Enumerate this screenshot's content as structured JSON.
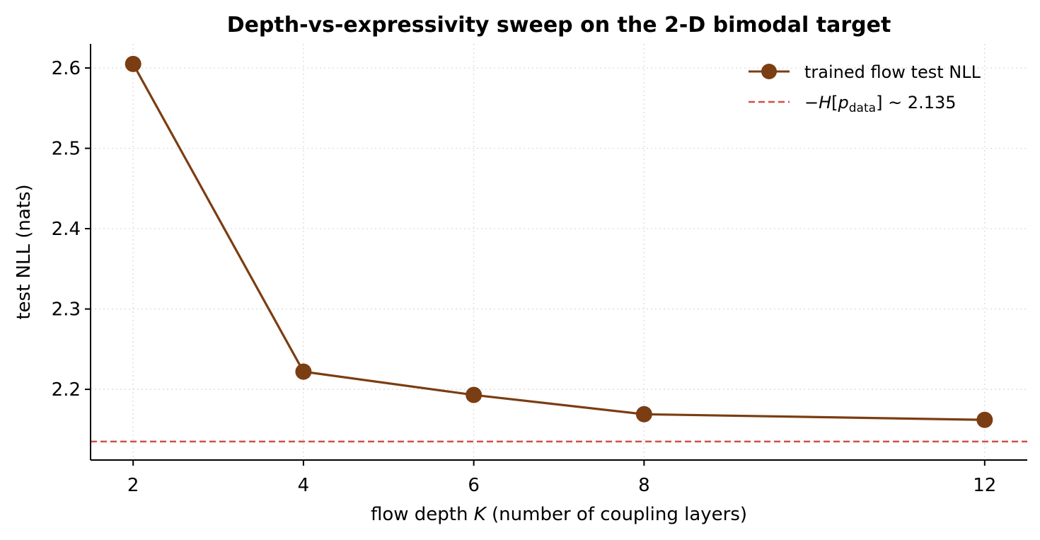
{
  "chart_data": {
    "type": "line",
    "title": "Depth-vs-expressivity sweep on the 2-D bimodal target",
    "xlabel": "flow depth K (number of coupling layers)",
    "xlabel_parts": {
      "pre": "flow depth ",
      "italic": "K",
      "post": " (number of coupling layers)"
    },
    "ylabel": "test NLL (nats)",
    "x": [
      2,
      4,
      6,
      8,
      12
    ],
    "xticks": [
      "2",
      "4",
      "6",
      "8",
      "12"
    ],
    "yticks": [
      "2.2",
      "2.3",
      "2.4",
      "2.5",
      "2.6"
    ],
    "ytick_values": [
      2.2,
      2.3,
      2.4,
      2.5,
      2.6
    ],
    "xlim": [
      1.5,
      12.5
    ],
    "ylim": [
      2.112,
      2.63
    ],
    "grid": true,
    "legend_position": "top-right",
    "series": [
      {
        "name": "trained flow test NLL",
        "values": [
          2.605,
          2.222,
          2.193,
          2.169,
          2.162
        ],
        "color": "#7b3d12",
        "marker": "circle"
      }
    ],
    "reference_lines": [
      {
        "name": "−H[p_data] ~ 2.135",
        "label_parts": {
          "minus": "−",
          "H": "H",
          "lb": "[",
          "p": "p",
          "sub": "data",
          "rb": "]",
          "rest": " ~ 2.135"
        },
        "value": 2.135,
        "color": "#d0504a",
        "style": "dashed"
      }
    ]
  }
}
